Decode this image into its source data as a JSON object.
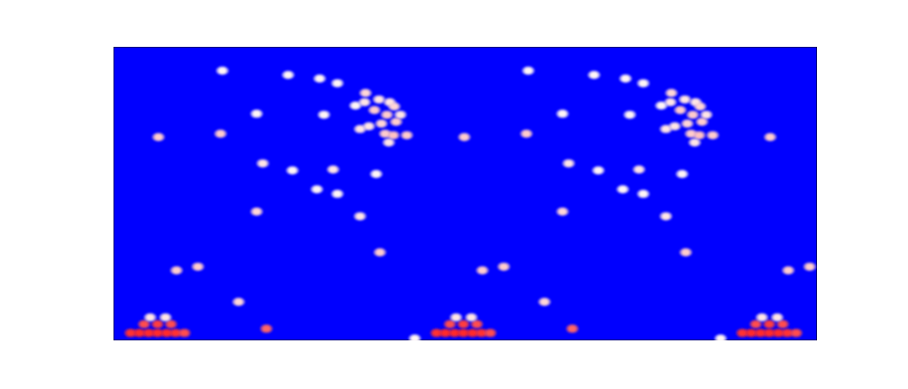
{
  "chart_data": {
    "type": "heatmap",
    "tick_labels": false,
    "xlim": [
      0,
      230
    ],
    "ylim": [
      0,
      96
    ],
    "color_range": [
      0,
      1
    ],
    "x": [
      14.7,
      35.0,
      35.6,
      57.1,
      67.4,
      73.2,
      82.4,
      86.8,
      90.3,
      91.8,
      82.1,
      79.1,
      85.3,
      89.4,
      93.8,
      92.4,
      87.6,
      83.5,
      80.6,
      88.8,
      91.5,
      95.9,
      90.0,
      68.8,
      46.8,
      48.8,
      58.5,
      71.8,
      66.5,
      73.2,
      85.9,
      46.8,
      80.6,
      87.1,
      20.6,
      27.6,
      40.9,
      50.0,
      5.6,
      8.5,
      11.5,
      14.4,
      17.4,
      20.3,
      23.2,
      10.0,
      14.4,
      18.8,
      12.0,
      17.0,
      98.5,
      114.7,
      135.0,
      135.6,
      157.1,
      167.4,
      173.2,
      182.4,
      186.8,
      190.3,
      191.8,
      182.1,
      179.1,
      185.3,
      189.4,
      193.8,
      192.4,
      187.6,
      183.5,
      180.6,
      188.8,
      191.5,
      195.9,
      190.0,
      168.8,
      146.8,
      148.8,
      158.5,
      171.8,
      166.5,
      173.2,
      185.9,
      146.8,
      180.6,
      187.1,
      120.6,
      127.6,
      140.9,
      150.0,
      105.6,
      108.5,
      111.5,
      114.4,
      117.4,
      120.3,
      123.2,
      110.0,
      114.4,
      118.8,
      112.0,
      117.0,
      198.5,
      214.7,
      220.6,
      227.6,
      205.6,
      208.5,
      211.5,
      214.4,
      217.4,
      220.3,
      223.2,
      210.0,
      214.4,
      218.8,
      212.0,
      217.0
    ],
    "y": [
      66.5,
      67.6,
      88.2,
      86.8,
      85.6,
      84.1,
      80.9,
      78.8,
      77.9,
      76.5,
      77.9,
      76.8,
      75.3,
      73.8,
      73.8,
      71.5,
      70.9,
      70.0,
      69.1,
      67.6,
      67.1,
      67.1,
      64.7,
      73.8,
      74.1,
      57.9,
      55.6,
      55.9,
      49.4,
      47.9,
      54.4,
      42.1,
      40.6,
      28.8,
      22.9,
      24.1,
      12.6,
      3.8,
      2.4,
      2.4,
      2.4,
      2.4,
      2.4,
      2.4,
      2.4,
      5.3,
      5.3,
      5.3,
      7.5,
      7.5,
      0.6,
      66.5,
      67.6,
      88.2,
      86.8,
      85.6,
      84.1,
      80.9,
      78.8,
      77.9,
      76.5,
      77.9,
      76.8,
      75.3,
      73.8,
      73.8,
      71.5,
      70.9,
      70.0,
      69.1,
      67.6,
      67.1,
      67.1,
      64.7,
      73.8,
      74.1,
      57.9,
      55.6,
      55.9,
      49.4,
      47.9,
      54.4,
      42.1,
      40.6,
      28.8,
      22.9,
      24.1,
      12.6,
      3.8,
      2.4,
      2.4,
      2.4,
      2.4,
      2.4,
      2.4,
      2.4,
      5.3,
      5.3,
      5.3,
      7.5,
      7.5,
      0.6,
      66.5,
      22.9,
      24.1,
      2.4,
      2.4,
      2.4,
      2.4,
      2.4,
      2.4,
      2.4,
      5.3,
      5.3,
      5.3,
      7.5,
      7.5
    ],
    "values": [
      0.6,
      0.6,
      0.52,
      0.52,
      0.52,
      0.52,
      0.58,
      0.55,
      0.55,
      0.58,
      0.55,
      0.52,
      0.6,
      0.6,
      0.55,
      0.6,
      0.58,
      0.55,
      0.55,
      0.6,
      0.62,
      0.6,
      0.55,
      0.52,
      0.52,
      0.55,
      0.52,
      0.55,
      0.52,
      0.52,
      0.52,
      0.58,
      0.55,
      0.6,
      0.6,
      0.6,
      0.58,
      0.8,
      0.9,
      0.92,
      0.92,
      0.92,
      0.92,
      0.9,
      0.85,
      0.85,
      0.88,
      0.85,
      0.55,
      0.55,
      0.52,
      0.6,
      0.6,
      0.52,
      0.52,
      0.52,
      0.52,
      0.58,
      0.55,
      0.55,
      0.58,
      0.55,
      0.52,
      0.6,
      0.6,
      0.55,
      0.6,
      0.58,
      0.55,
      0.55,
      0.6,
      0.62,
      0.6,
      0.55,
      0.52,
      0.52,
      0.55,
      0.52,
      0.55,
      0.52,
      0.52,
      0.52,
      0.58,
      0.55,
      0.6,
      0.6,
      0.6,
      0.58,
      0.8,
      0.9,
      0.92,
      0.92,
      0.92,
      0.92,
      0.9,
      0.85,
      0.85,
      0.88,
      0.85,
      0.55,
      0.55,
      0.52,
      0.6,
      0.6,
      0.6,
      0.9,
      0.92,
      0.92,
      0.92,
      0.92,
      0.9,
      0.85,
      0.85,
      0.88,
      0.85,
      0.55,
      0.55
    ]
  }
}
